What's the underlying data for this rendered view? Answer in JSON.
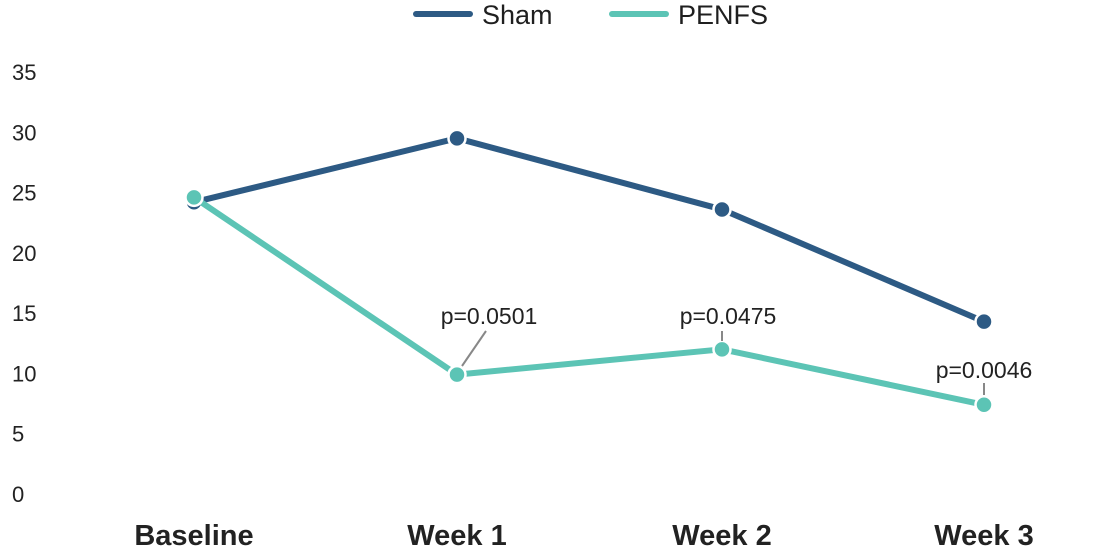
{
  "chart_data": {
    "type": "line",
    "title": "",
    "xlabel": "",
    "ylabel": "",
    "categories": [
      "Baseline",
      "Week 1",
      "Week 2",
      "Week 3"
    ],
    "ylim": [
      0,
      35
    ],
    "yticks": [
      0,
      5,
      10,
      15,
      20,
      25,
      30,
      35
    ],
    "grid": false,
    "legend": "top-center",
    "series": [
      {
        "name": "Sham",
        "color": "#2d5a84",
        "values": [
          24.2,
          29.5,
          23.6,
          14.3
        ]
      },
      {
        "name": "PENFS",
        "color": "#5cc4b5",
        "values": [
          24.6,
          9.9,
          12.0,
          7.4
        ]
      }
    ],
    "annotations": [
      {
        "category": "Week 1",
        "series": "PENFS",
        "text": "p=0.0501"
      },
      {
        "category": "Week 2",
        "series": "PENFS",
        "text": "p=0.0475"
      },
      {
        "category": "Week 3",
        "series": "PENFS",
        "text": "p=0.0046"
      }
    ]
  }
}
